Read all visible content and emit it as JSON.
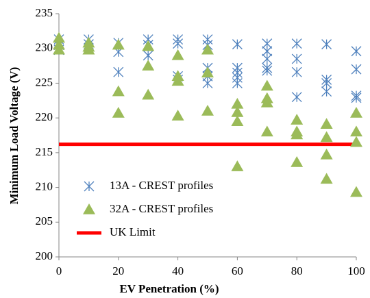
{
  "chart_data": {
    "type": "scatter",
    "x_label": "EV Penetration (%)",
    "y_label": "Minimum Load Voltage (V)",
    "xlim": [
      0,
      100
    ],
    "xticks": [
      0,
      20,
      40,
      60,
      80,
      100
    ],
    "ylim": [
      200,
      235
    ],
    "yticks": [
      200,
      205,
      210,
      215,
      220,
      225,
      230,
      235
    ],
    "legend": "lower left",
    "series": [
      {
        "name": "13A - CREST profiles",
        "color": "#4f81bd",
        "marker": "asterisk",
        "x": [
          0,
          0,
          0,
          10,
          10,
          10,
          20,
          20,
          20,
          30,
          30,
          30,
          40,
          40,
          40,
          40,
          50,
          50,
          50,
          50,
          50,
          60,
          60,
          60,
          60,
          60,
          70,
          70,
          70,
          70,
          70,
          80,
          80,
          80,
          80,
          90,
          90,
          90,
          90,
          100,
          100,
          100,
          100
        ],
        "values": [
          231.3,
          230.5,
          229.8,
          231.3,
          230.6,
          230.0,
          230.8,
          229.5,
          226.6,
          231.3,
          230.5,
          229.0,
          231.3,
          230.7,
          226.0,
          225.5,
          231.3,
          230.5,
          227.2,
          226.0,
          225.0,
          230.6,
          227.2,
          226.5,
          225.8,
          225.0,
          230.7,
          229.6,
          228.5,
          227.2,
          226.8,
          230.7,
          228.5,
          226.6,
          223.0,
          230.6,
          225.5,
          225.0,
          223.8,
          229.6,
          227.0,
          223.2,
          222.9
        ]
      },
      {
        "name": "32A - CREST profiles",
        "color": "#9bbb59",
        "marker": "triangle",
        "x": [
          0,
          0,
          0,
          10,
          10,
          10,
          20,
          20,
          20,
          30,
          30,
          30,
          40,
          40,
          40,
          40,
          50,
          50,
          50,
          60,
          60,
          60,
          60,
          70,
          70,
          70,
          70,
          80,
          80,
          80,
          80,
          90,
          90,
          90,
          90,
          100,
          100,
          100,
          100
        ],
        "values": [
          231.5,
          230.5,
          229.8,
          230.8,
          230.2,
          229.8,
          230.5,
          223.8,
          220.7,
          230.3,
          227.5,
          223.3,
          229.0,
          226.0,
          225.3,
          220.3,
          229.8,
          226.5,
          221.0,
          222.0,
          220.8,
          219.5,
          213.0,
          224.6,
          222.8,
          222.2,
          218.0,
          219.7,
          218.0,
          217.6,
          213.6,
          219.1,
          217.2,
          214.7,
          211.2,
          220.7,
          218.0,
          216.5,
          209.3
        ]
      },
      {
        "name": "UK Limit",
        "color": "#ff0000",
        "marker": "line",
        "x": [
          0,
          100
        ],
        "values": [
          216.2,
          216.2
        ]
      }
    ]
  }
}
